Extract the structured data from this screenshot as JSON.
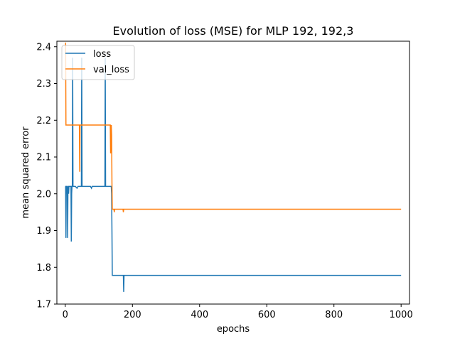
{
  "chart_data": {
    "type": "line",
    "title": "Evolution of loss (MSE) for MLP 192, 192,3",
    "xlabel": "epochs",
    "ylabel": "mean squared error",
    "xlim": [
      -25,
      1025
    ],
    "ylim": [
      1.7,
      2.415
    ],
    "xticks": [
      0,
      200,
      400,
      600,
      800,
      1000
    ],
    "yticks": [
      1.7,
      1.8,
      1.9,
      2.0,
      2.1,
      2.2,
      2.3,
      2.4
    ],
    "xtick_labels": [
      "0",
      "200",
      "400",
      "600",
      "800",
      "1000"
    ],
    "ytick_labels": [
      "1.7",
      "1.8",
      "1.9",
      "2.0",
      "2.1",
      "2.2",
      "2.3",
      "2.4"
    ],
    "grid": false,
    "legend_position": "upper left",
    "legend": [
      "loss",
      "val_loss"
    ],
    "series": [
      {
        "name": "loss",
        "color": "#1f77b4",
        "x": [
          0,
          1,
          2,
          3,
          4,
          5,
          6,
          7,
          8,
          9,
          10,
          11,
          12,
          13,
          15,
          17,
          18,
          19,
          20,
          21,
          22,
          23,
          24,
          25,
          26,
          27,
          28,
          30,
          35,
          38,
          39,
          40,
          45,
          46,
          47,
          48,
          49,
          50,
          51,
          52,
          53,
          60,
          70,
          75,
          78,
          80,
          90,
          95,
          100,
          110,
          115,
          118,
          119,
          120,
          121,
          122,
          123,
          130,
          135,
          137,
          138,
          139,
          140,
          150,
          160,
          170,
          172,
          173,
          174,
          175,
          176,
          177,
          180,
          200,
          300,
          400,
          500,
          600,
          700,
          800,
          900,
          1000
        ],
        "values": [
          2.02,
          2.02,
          1.88,
          2.02,
          2.02,
          2.0,
          2.02,
          1.88,
          2.02,
          2.02,
          2.0,
          2.02,
          2.02,
          2.02,
          2.02,
          2.02,
          1.87,
          2.0,
          2.02,
          2.02,
          2.37,
          2.02,
          2.02,
          2.02,
          2.02,
          2.02,
          2.02,
          2.02,
          2.015,
          2.02,
          2.02,
          2.02,
          2.02,
          2.02,
          2.02,
          2.02,
          2.37,
          2.02,
          2.02,
          2.02,
          2.02,
          2.02,
          2.02,
          2.02,
          2.015,
          2.02,
          2.02,
          2.02,
          2.02,
          2.02,
          2.02,
          2.02,
          2.37,
          2.02,
          2.02,
          2.02,
          2.02,
          2.02,
          2.02,
          2.02,
          2.0,
          1.9,
          1.778,
          1.778,
          1.778,
          1.778,
          1.778,
          1.778,
          1.733,
          1.778,
          1.778,
          1.778,
          1.778,
          1.778,
          1.778,
          1.778,
          1.778,
          1.778,
          1.778,
          1.778,
          1.778,
          1.778
        ]
      },
      {
        "name": "val_loss",
        "color": "#ff7f0e",
        "x": [
          0,
          1,
          2,
          3,
          4,
          10,
          20,
          30,
          40,
          41,
          42,
          43,
          44,
          45,
          46,
          47,
          50,
          60,
          80,
          100,
          120,
          130,
          133,
          134,
          135,
          136,
          137,
          138,
          139,
          140,
          141,
          142,
          145,
          146,
          147,
          150,
          160,
          165,
          167,
          168,
          169,
          170,
          172,
          173,
          174,
          175,
          176,
          177,
          180,
          200,
          400,
          600,
          800,
          1000
        ],
        "values": [
          2.41,
          2.41,
          2.187,
          2.187,
          2.187,
          2.187,
          2.187,
          2.187,
          2.187,
          2.187,
          2.187,
          2.06,
          2.187,
          2.187,
          2.187,
          2.187,
          2.187,
          2.187,
          2.187,
          2.187,
          2.187,
          2.187,
          2.187,
          2.187,
          2.11,
          2.17,
          2.187,
          2.16,
          2.03,
          1.958,
          1.958,
          1.958,
          1.958,
          1.95,
          1.958,
          1.958,
          1.958,
          1.958,
          1.958,
          1.958,
          1.958,
          1.958,
          1.958,
          1.95,
          1.958,
          1.958,
          1.958,
          1.958,
          1.958,
          1.958,
          1.958,
          1.958,
          1.958,
          1.958
        ]
      }
    ]
  }
}
